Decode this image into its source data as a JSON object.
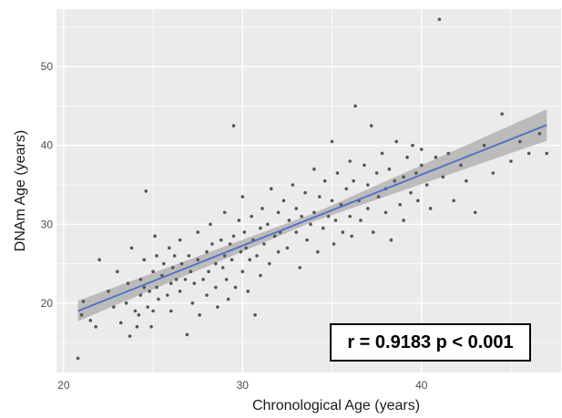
{
  "chart_data": {
    "type": "scatter",
    "xlabel": "Chronological Age (years)",
    "ylabel": "DNAm Age (years)",
    "xlim": [
      19.6,
      47.8
    ],
    "ylim": [
      11.2,
      57.3
    ],
    "x_ticks": [
      20,
      30,
      40
    ],
    "y_ticks": [
      20,
      30,
      40,
      50
    ],
    "grid": true,
    "annotation": "r = 0.9183 p < 0.001",
    "colors": {
      "points": "#555555",
      "fit_line": "#4c6fc5",
      "confidence_band": "#a6a6a6",
      "panel": "#ebebeb",
      "grid": "#ffffff"
    },
    "fit_line": {
      "x": [
        20.8,
        47.0
      ],
      "y": [
        19.0,
        42.6
      ]
    },
    "confidence_band": {
      "x": [
        20.8,
        34.0,
        47.0
      ],
      "lower": [
        17.7,
        30.4,
        40.6
      ],
      "upper": [
        20.3,
        31.4,
        44.6
      ]
    },
    "points": [
      [
        20.8,
        13.0
      ],
      [
        21.0,
        18.5
      ],
      [
        21.1,
        20.2
      ],
      [
        21.5,
        17.8
      ],
      [
        21.8,
        17.0
      ],
      [
        22.0,
        25.5
      ],
      [
        22.5,
        21.5
      ],
      [
        22.8,
        19.5
      ],
      [
        23.0,
        24.0
      ],
      [
        23.2,
        17.5
      ],
      [
        23.5,
        20.0
      ],
      [
        23.6,
        22.5
      ],
      [
        23.7,
        15.8
      ],
      [
        23.8,
        27.0
      ],
      [
        24.0,
        19.0
      ],
      [
        24.1,
        17.0
      ],
      [
        24.2,
        18.5
      ],
      [
        24.3,
        21.0
      ],
      [
        24.3,
        23.0
      ],
      [
        24.5,
        22.0
      ],
      [
        24.5,
        25.5
      ],
      [
        24.6,
        34.2
      ],
      [
        24.7,
        19.5
      ],
      [
        24.8,
        21.5
      ],
      [
        24.9,
        17.0
      ],
      [
        25.0,
        24.0
      ],
      [
        25.0,
        19.0
      ],
      [
        25.1,
        28.5
      ],
      [
        25.2,
        22.0
      ],
      [
        25.2,
        26.0
      ],
      [
        25.3,
        20.5
      ],
      [
        25.5,
        23.5
      ],
      [
        25.6,
        25.0
      ],
      [
        25.8,
        21.0
      ],
      [
        25.9,
        27.0
      ],
      [
        26.0,
        22.5
      ],
      [
        26.0,
        19.0
      ],
      [
        26.1,
        24.5
      ],
      [
        26.2,
        26.0
      ],
      [
        26.3,
        23.0
      ],
      [
        26.5,
        28.0
      ],
      [
        26.5,
        21.5
      ],
      [
        26.6,
        25.0
      ],
      [
        26.8,
        23.0
      ],
      [
        26.9,
        16.0
      ],
      [
        27.0,
        26.0
      ],
      [
        27.1,
        24.0
      ],
      [
        27.2,
        20.0
      ],
      [
        27.3,
        22.5
      ],
      [
        27.5,
        25.5
      ],
      [
        27.5,
        29.0
      ],
      [
        27.6,
        18.5
      ],
      [
        27.8,
        23.0
      ],
      [
        28.0,
        26.5
      ],
      [
        28.0,
        21.0
      ],
      [
        28.1,
        24.0
      ],
      [
        28.2,
        30.0
      ],
      [
        28.3,
        27.5
      ],
      [
        28.5,
        22.0
      ],
      [
        28.5,
        25.0
      ],
      [
        28.6,
        19.5
      ],
      [
        28.8,
        28.0
      ],
      [
        28.9,
        24.5
      ],
      [
        29.0,
        26.0
      ],
      [
        29.0,
        31.5
      ],
      [
        29.1,
        23.0
      ],
      [
        29.2,
        20.5
      ],
      [
        29.3,
        27.5
      ],
      [
        29.4,
        25.5
      ],
      [
        29.5,
        42.5
      ],
      [
        29.5,
        28.5
      ],
      [
        29.6,
        22.0
      ],
      [
        29.8,
        30.5
      ],
      [
        29.9,
        26.5
      ],
      [
        30.0,
        24.0
      ],
      [
        30.0,
        33.5
      ],
      [
        30.1,
        29.0
      ],
      [
        30.2,
        27.0
      ],
      [
        30.3,
        21.5
      ],
      [
        30.4,
        25.5
      ],
      [
        30.5,
        31.0
      ],
      [
        30.6,
        28.0
      ],
      [
        30.7,
        18.5
      ],
      [
        30.8,
        26.0
      ],
      [
        31.0,
        29.5
      ],
      [
        31.0,
        23.5
      ],
      [
        31.1,
        32.0
      ],
      [
        31.2,
        27.5
      ],
      [
        31.4,
        30.0
      ],
      [
        31.5,
        25.0
      ],
      [
        31.6,
        34.5
      ],
      [
        31.8,
        28.5
      ],
      [
        32.0,
        31.5
      ],
      [
        32.0,
        26.5
      ],
      [
        32.1,
        29.0
      ],
      [
        32.3,
        33.0
      ],
      [
        32.5,
        27.0
      ],
      [
        32.6,
        30.5
      ],
      [
        32.8,
        35.0
      ],
      [
        33.0,
        29.0
      ],
      [
        33.0,
        32.0
      ],
      [
        33.2,
        24.5
      ],
      [
        33.3,
        31.0
      ],
      [
        33.5,
        34.0
      ],
      [
        33.6,
        28.0
      ],
      [
        33.8,
        30.0
      ],
      [
        34.0,
        37.0
      ],
      [
        34.0,
        31.5
      ],
      [
        34.2,
        26.5
      ],
      [
        34.3,
        33.5
      ],
      [
        34.5,
        29.5
      ],
      [
        34.6,
        35.5
      ],
      [
        34.8,
        31.0
      ],
      [
        35.0,
        40.5
      ],
      [
        35.0,
        33.0
      ],
      [
        35.1,
        27.5
      ],
      [
        35.2,
        30.5
      ],
      [
        35.3,
        36.5
      ],
      [
        35.5,
        32.5
      ],
      [
        35.6,
        29.0
      ],
      [
        35.8,
        34.5
      ],
      [
        36.0,
        38.0
      ],
      [
        36.0,
        31.0
      ],
      [
        36.1,
        28.5
      ],
      [
        36.2,
        35.5
      ],
      [
        36.3,
        45.0
      ],
      [
        36.5,
        33.0
      ],
      [
        36.6,
        30.5
      ],
      [
        36.8,
        37.5
      ],
      [
        37.0,
        32.0
      ],
      [
        37.0,
        35.0
      ],
      [
        37.2,
        42.5
      ],
      [
        37.3,
        29.0
      ],
      [
        37.5,
        36.5
      ],
      [
        37.6,
        33.5
      ],
      [
        37.8,
        39.0
      ],
      [
        38.0,
        31.5
      ],
      [
        38.0,
        34.5
      ],
      [
        38.2,
        37.0
      ],
      [
        38.3,
        28.0
      ],
      [
        38.5,
        35.5
      ],
      [
        38.6,
        40.5
      ],
      [
        38.8,
        32.5
      ],
      [
        39.0,
        36.0
      ],
      [
        39.0,
        30.5
      ],
      [
        39.2,
        38.5
      ],
      [
        39.4,
        34.0
      ],
      [
        39.5,
        40.0
      ],
      [
        39.7,
        36.5
      ],
      [
        39.8,
        33.0
      ],
      [
        40.0,
        37.5
      ],
      [
        40.0,
        39.5
      ],
      [
        40.3,
        35.0
      ],
      [
        40.5,
        32.0
      ],
      [
        40.8,
        38.5
      ],
      [
        41.0,
        56.0
      ],
      [
        41.2,
        36.0
      ],
      [
        41.5,
        39.0
      ],
      [
        41.8,
        33.0
      ],
      [
        42.2,
        37.5
      ],
      [
        42.5,
        35.5
      ],
      [
        43.0,
        31.5
      ],
      [
        43.5,
        40.0
      ],
      [
        44.0,
        36.5
      ],
      [
        44.5,
        44.0
      ],
      [
        45.0,
        38.0
      ],
      [
        45.5,
        40.5
      ],
      [
        46.0,
        39.0
      ],
      [
        46.6,
        41.5
      ],
      [
        47.0,
        39.0
      ]
    ]
  }
}
